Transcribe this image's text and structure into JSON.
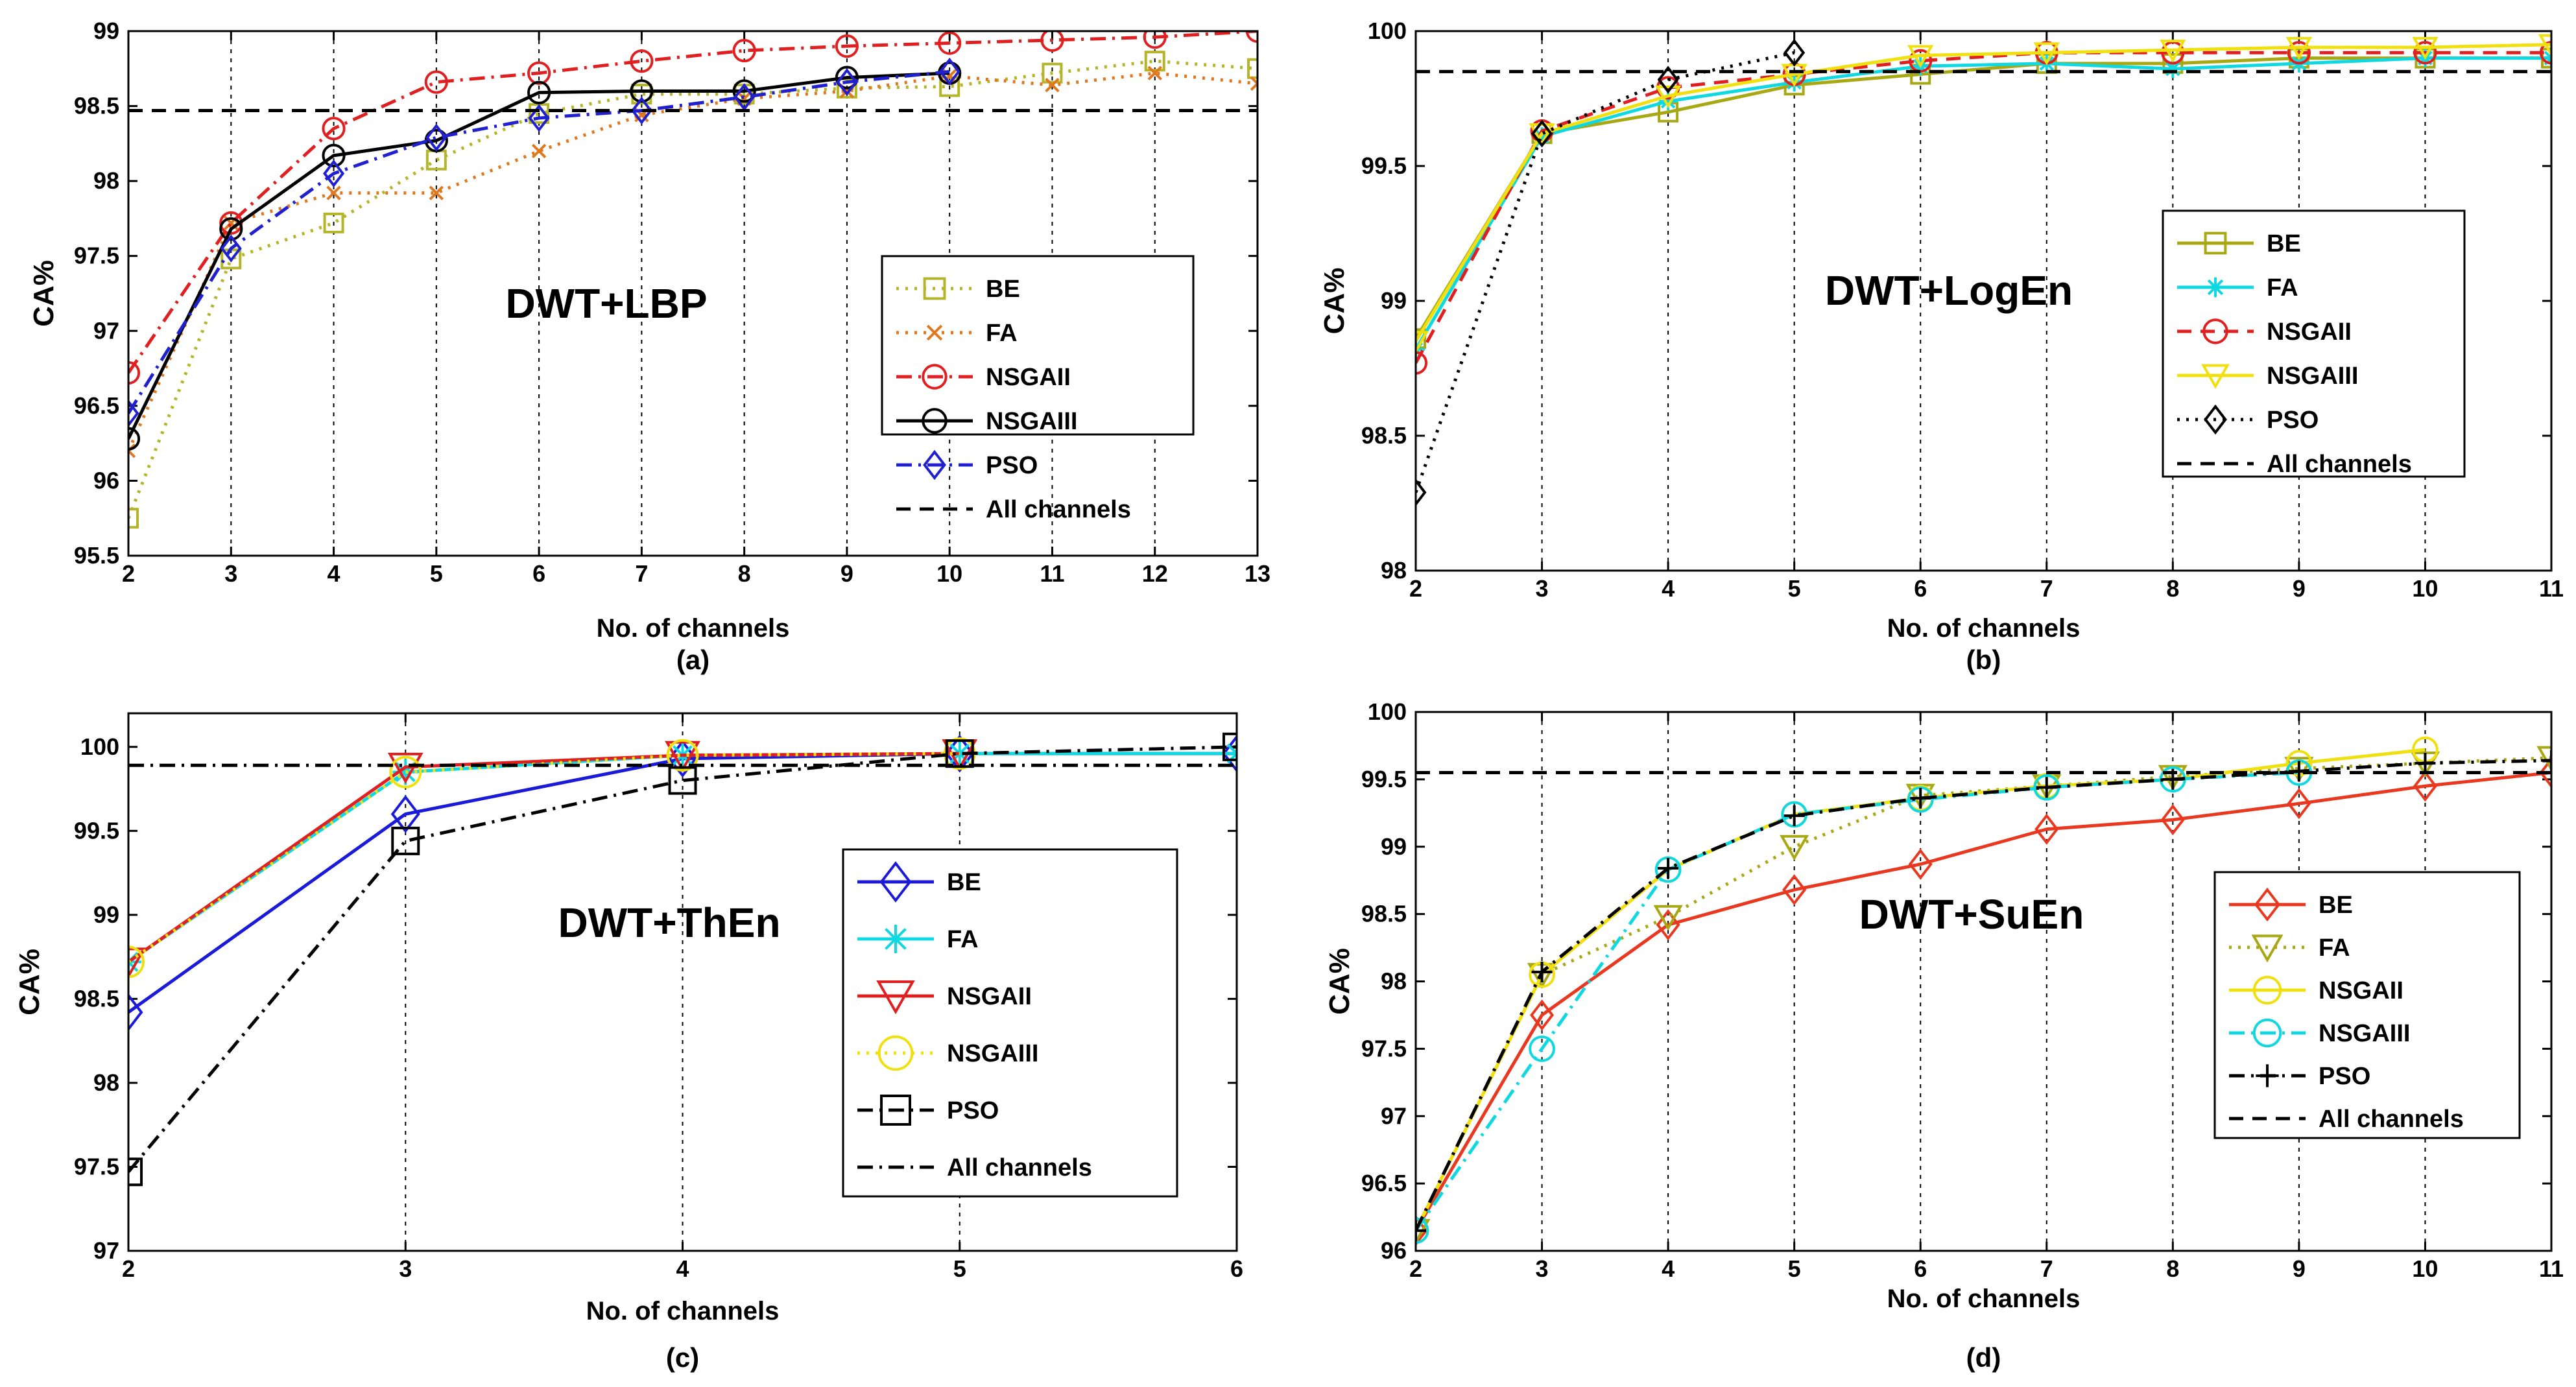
{
  "chart_data": [
    {
      "type": "line",
      "id": "a",
      "panel_label": "(a)",
      "title": "DWT+LBP",
      "xlabel": "No. of channels",
      "ylabel": "CA%",
      "xlim": [
        2,
        13
      ],
      "ylim": [
        95.5,
        99
      ],
      "xticks": [
        2,
        3,
        4,
        5,
        6,
        7,
        8,
        9,
        10,
        11,
        12,
        13
      ],
      "yticks": [
        95.5,
        96,
        96.5,
        97,
        97.5,
        98,
        98.5,
        99
      ],
      "ytick_labels": [
        "95.5",
        "96",
        "96.5",
        "97",
        "97.5",
        "98",
        "98.5",
        "99"
      ],
      "grid_x": true,
      "legend": "center-right",
      "series": [
        {
          "name": "BE",
          "color": "#b5b52a",
          "dash": "dot",
          "marker": "square",
          "x": [
            2,
            3,
            4,
            5,
            6,
            7,
            8,
            9,
            10,
            11,
            12,
            13
          ],
          "y": [
            95.75,
            97.48,
            97.72,
            98.14,
            98.45,
            98.58,
            98.58,
            98.62,
            98.63,
            98.72,
            98.8,
            98.75
          ]
        },
        {
          "name": "FA",
          "color": "#e07820",
          "dash": "dot",
          "marker": "x",
          "x": [
            2,
            3,
            4,
            5,
            6,
            7,
            8,
            9,
            10,
            11,
            12,
            13
          ],
          "y": [
            96.2,
            97.72,
            97.92,
            97.92,
            98.2,
            98.44,
            98.55,
            98.6,
            98.7,
            98.64,
            98.72,
            98.65
          ]
        },
        {
          "name": "NSGAII",
          "color": "#e02020",
          "dash": "dashdot",
          "marker": "circle",
          "x": [
            2,
            3,
            4,
            5,
            6,
            7,
            8,
            9,
            10,
            11,
            12,
            13
          ],
          "y": [
            96.72,
            97.72,
            98.35,
            98.66,
            98.72,
            98.8,
            98.87,
            98.9,
            98.92,
            98.94,
            98.96,
            99.0
          ]
        },
        {
          "name": "NSGAIII",
          "color": "#000000",
          "dash": "solid",
          "marker": "circle",
          "x": [
            2,
            3,
            4,
            5,
            6,
            7,
            8,
            9,
            10
          ],
          "y": [
            96.28,
            97.68,
            98.17,
            98.27,
            98.59,
            98.6,
            98.6,
            98.69,
            98.72
          ]
        },
        {
          "name": "PSO",
          "color": "#2020d0",
          "dash": "dashdot",
          "marker": "diamond",
          "x": [
            2,
            3,
            4,
            5,
            6,
            7,
            8,
            9,
            10
          ],
          "y": [
            96.45,
            97.55,
            98.05,
            98.29,
            98.42,
            98.47,
            98.56,
            98.66,
            98.73
          ]
        },
        {
          "name": "All channels",
          "color": "#000000",
          "dash": "dash",
          "marker": "none",
          "x": [
            2,
            13
          ],
          "y": [
            98.47,
            98.47
          ]
        }
      ]
    },
    {
      "type": "line",
      "id": "b",
      "panel_label": "(b)",
      "title": "DWT+LogEn",
      "xlabel": "No. of channels",
      "ylabel": "CA%",
      "xlim": [
        2,
        11
      ],
      "ylim": [
        98,
        100
      ],
      "xticks": [
        2,
        3,
        4,
        5,
        6,
        7,
        8,
        9,
        10,
        11
      ],
      "yticks": [
        98,
        98.5,
        99,
        99.5,
        100
      ],
      "ytick_labels": [
        "98",
        "98.5",
        "99",
        "99.5",
        "100"
      ],
      "grid_x": true,
      "legend": "center-right",
      "series": [
        {
          "name": "BE",
          "color": "#a8a814",
          "dash": "solid",
          "marker": "square",
          "x": [
            2,
            3,
            4,
            5,
            6,
            7,
            8,
            9,
            10,
            11
          ],
          "y": [
            98.86,
            99.62,
            99.7,
            99.8,
            99.84,
            99.88,
            99.88,
            99.9,
            99.9,
            99.9
          ]
        },
        {
          "name": "FA",
          "color": "#10d8e0",
          "dash": "solid",
          "marker": "asterisk",
          "x": [
            2,
            3,
            4,
            5,
            6,
            7,
            8,
            9,
            10,
            11
          ],
          "y": [
            98.82,
            99.61,
            99.74,
            99.81,
            99.87,
            99.88,
            99.86,
            99.88,
            99.9,
            99.9
          ]
        },
        {
          "name": "NSGAII",
          "color": "#e02020",
          "dash": "dash",
          "marker": "circle",
          "x": [
            2,
            3,
            4,
            5,
            6,
            7,
            8,
            9,
            10,
            11
          ],
          "y": [
            98.77,
            99.63,
            99.79,
            99.84,
            99.89,
            99.92,
            99.92,
            99.92,
            99.92,
            99.92
          ]
        },
        {
          "name": "NSGAIII",
          "color": "#f0e010",
          "dash": "solid",
          "marker": "triangle-down",
          "x": [
            2,
            3,
            4,
            5,
            6,
            7,
            8,
            9,
            10,
            11
          ],
          "y": [
            98.85,
            99.62,
            99.76,
            99.84,
            99.91,
            99.92,
            99.93,
            99.94,
            99.94,
            99.95
          ]
        },
        {
          "name": "PSO",
          "color": "#000000",
          "dash": "dot",
          "marker": "diamond",
          "x": [
            2,
            3,
            4,
            5
          ],
          "y": [
            98.29,
            99.62,
            99.82,
            99.92
          ]
        },
        {
          "name": "All channels",
          "color": "#000000",
          "dash": "dash",
          "marker": "none",
          "x": [
            2,
            11
          ],
          "y": [
            99.85,
            99.85
          ]
        }
      ]
    },
    {
      "type": "line",
      "id": "c",
      "panel_label": "(c)",
      "title": "DWT+ThEn",
      "xlabel": "No. of channels",
      "ylabel": "CA%",
      "xlim": [
        2,
        6
      ],
      "ylim": [
        97,
        100.2
      ],
      "xticks": [
        2,
        3,
        4,
        5,
        6
      ],
      "yticks": [
        97,
        97.5,
        98,
        98.5,
        99,
        99.5,
        100
      ],
      "ytick_labels": [
        "97",
        "97.5",
        "98",
        "98.5",
        "99",
        "99.5",
        "100"
      ],
      "grid_x": true,
      "legend": "center-right",
      "series": [
        {
          "name": "BE",
          "color": "#1a1ad8",
          "dash": "solid",
          "marker": "diamond",
          "x": [
            2,
            3,
            4,
            5,
            6
          ],
          "y": [
            98.42,
            99.6,
            99.93,
            99.96,
            99.96
          ]
        },
        {
          "name": "FA",
          "color": "#10d8e0",
          "dash": "solid",
          "marker": "asterisk",
          "x": [
            2,
            3,
            4,
            5,
            6
          ],
          "y": [
            98.72,
            99.85,
            99.95,
            99.96,
            99.96
          ]
        },
        {
          "name": "NSGAII",
          "color": "#e02020",
          "dash": "solid",
          "marker": "triangle-down",
          "x": [
            2,
            3,
            4,
            5
          ],
          "y": [
            98.72,
            99.88,
            99.95,
            99.96
          ]
        },
        {
          "name": "NSGAIII",
          "color": "#f0e010",
          "dash": "dot",
          "marker": "circle",
          "x": [
            2,
            3,
            4,
            5
          ],
          "y": [
            98.72,
            99.85,
            99.95,
            99.96
          ]
        },
        {
          "name": "PSO",
          "color": "#000000",
          "dash": "dashdot",
          "marker": "square",
          "x": [
            2,
            3,
            4,
            5,
            6
          ],
          "y": [
            97.47,
            99.44,
            99.8,
            99.96,
            100.0
          ]
        },
        {
          "name": "All channels",
          "color": "#000000",
          "dash": "dashdot",
          "marker": "none",
          "x": [
            2,
            6
          ],
          "y": [
            99.89,
            99.89
          ]
        }
      ]
    },
    {
      "type": "line",
      "id": "d",
      "panel_label": "(d)",
      "title": "DWT+SuEn",
      "xlabel": "No. of channels",
      "ylabel": "CA%",
      "xlim": [
        2,
        11
      ],
      "ylim": [
        96,
        100
      ],
      "xticks": [
        2,
        3,
        4,
        5,
        6,
        7,
        8,
        9,
        10,
        11
      ],
      "yticks": [
        96,
        96.5,
        97,
        97.5,
        98,
        98.5,
        99,
        99.5,
        100
      ],
      "ytick_labels": [
        "96",
        "96.5",
        "97",
        "97.5",
        "98",
        "98.5",
        "99",
        "99.5",
        "100"
      ],
      "grid_x": true,
      "legend": "center-right",
      "series": [
        {
          "name": "BE",
          "color": "#e83820",
          "dash": "solid",
          "marker": "diamond",
          "x": [
            2,
            3,
            4,
            5,
            6,
            7,
            8,
            9,
            10,
            11
          ],
          "y": [
            96.15,
            97.75,
            98.42,
            98.68,
            98.87,
            99.13,
            99.2,
            99.32,
            99.45,
            99.55
          ]
        },
        {
          "name": "FA",
          "color": "#a8a814",
          "dash": "dot",
          "marker": "triangle-down",
          "x": [
            2,
            3,
            4,
            5,
            6,
            7,
            8,
            9,
            10,
            11
          ],
          "y": [
            96.15,
            98.05,
            98.48,
            99.0,
            99.38,
            99.45,
            99.52,
            99.58,
            99.62,
            99.66
          ]
        },
        {
          "name": "NSGAII",
          "color": "#f0e010",
          "dash": "solid",
          "marker": "circle",
          "x": [
            2,
            3,
            4,
            5,
            6,
            7,
            8,
            9,
            10
          ],
          "y": [
            96.15,
            98.05,
            98.83,
            99.24,
            99.36,
            99.45,
            99.5,
            99.62,
            99.72
          ]
        },
        {
          "name": "NSGAIII",
          "color": "#10d8e0",
          "dash": "dashdot",
          "marker": "circle",
          "x": [
            2,
            3,
            4,
            5,
            6,
            7,
            8,
            9
          ],
          "y": [
            96.15,
            97.5,
            98.83,
            99.24,
            99.35,
            99.44,
            99.5,
            99.55
          ]
        },
        {
          "name": "PSO",
          "color": "#000000",
          "dash": "dashdot",
          "marker": "plus",
          "x": [
            2,
            3,
            4,
            5,
            6,
            7,
            8,
            9,
            10,
            11
          ],
          "y": [
            96.15,
            98.07,
            98.84,
            99.23,
            99.36,
            99.44,
            99.5,
            99.56,
            99.62,
            99.64
          ]
        },
        {
          "name": "All channels",
          "color": "#000000",
          "dash": "dash",
          "marker": "none",
          "x": [
            2,
            11
          ],
          "y": [
            99.55,
            99.55
          ]
        }
      ]
    }
  ]
}
